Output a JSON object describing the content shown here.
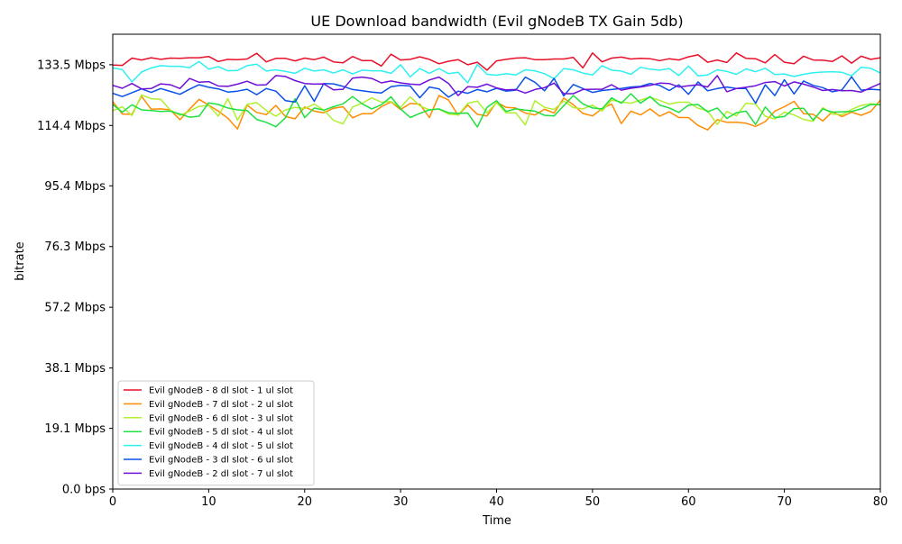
{
  "chart_data": {
    "type": "line",
    "title": "UE Download bandwidth (Evil gNodeB TX Gain 5db)",
    "xlabel": "Time",
    "ylabel": "bitrate",
    "xlim": [
      0,
      80
    ],
    "ylim": [
      0,
      143.1
    ],
    "x_ticks": [
      0,
      10,
      20,
      30,
      40,
      50,
      60,
      70,
      80
    ],
    "y_ticks": [
      {
        "value": 0.0,
        "label": "0.0 bps"
      },
      {
        "value": 19.1,
        "label": "19.1 Mbps"
      },
      {
        "value": 38.1,
        "label": "38.1 Mbps"
      },
      {
        "value": 57.2,
        "label": "57.2 Mbps"
      },
      {
        "value": 76.3,
        "label": "76.3 Mbps"
      },
      {
        "value": 95.4,
        "label": "95.4 Mbps"
      },
      {
        "value": 114.4,
        "label": "114.4 Mbps"
      },
      {
        "value": 133.5,
        "label": "133.5 Mbps"
      }
    ],
    "grid": false,
    "legend_position": "lower-left",
    "x": [
      0,
      1,
      2,
      3,
      4,
      5,
      6,
      7,
      8,
      9,
      10,
      11,
      12,
      13,
      14,
      15,
      16,
      17,
      18,
      19,
      20,
      21,
      22,
      23,
      24,
      25,
      26,
      27,
      28,
      29,
      30,
      31,
      32,
      33,
      34,
      35,
      36,
      37,
      38,
      39,
      40,
      41,
      42,
      43,
      44,
      45,
      46,
      47,
      48,
      49,
      50,
      51,
      52,
      53,
      54,
      55,
      56,
      57,
      58,
      59,
      60,
      61,
      62,
      63,
      64,
      65,
      66,
      67,
      68,
      69,
      70,
      71,
      72,
      73,
      74,
      75,
      76,
      77,
      78,
      79,
      80
    ],
    "series": [
      {
        "name": "Evil gNodeB - 8 dl slot - 1 ul slot",
        "color": "#e8102a",
        "values": [
          133.4,
          133.3,
          135.6,
          135.0,
          135.7,
          135.2,
          135.6,
          135.5,
          135.7,
          135.7,
          136.1,
          134.5,
          135.2,
          135.1,
          135.3,
          137.1,
          134.4,
          135.5,
          135.5,
          134.7,
          135.6,
          135.1,
          135.9,
          134.4,
          134.1,
          136.1,
          134.8,
          134.8,
          133.1,
          136.8,
          135.0,
          135.2,
          136.0,
          135.2,
          133.8,
          134.6,
          135.1,
          133.5,
          134.3,
          131.8,
          134.7,
          135.2,
          135.6,
          135.7,
          135.1,
          135.1,
          135.3,
          135.3,
          135.8,
          132.5,
          137.2,
          134.4,
          135.6,
          135.9,
          135.3,
          135.5,
          135.4,
          134.8,
          135.4,
          135.0,
          136.0,
          136.6,
          134.3,
          135.0,
          134.2,
          137.2,
          135.5,
          135.4,
          134.1,
          136.7,
          134.3,
          133.8,
          136.2,
          135.0,
          134.9,
          134.5,
          136.3,
          134.0,
          136.2,
          135.2,
          135.7
        ]
      },
      {
        "name": "Evil gNodeB - 7 dl slot - 2 ul slot",
        "color": "#ff8c00",
        "values": [
          121.9,
          118.0,
          117.9,
          123.6,
          119.5,
          119.6,
          119.3,
          116.2,
          119.5,
          122.6,
          120.8,
          118.9,
          116.7,
          113.3,
          120.8,
          118.5,
          117.8,
          120.7,
          117.2,
          116.5,
          120.2,
          118.9,
          118.4,
          119.8,
          120.3,
          116.8,
          118.1,
          118.1,
          120.3,
          121.8,
          119.4,
          121.3,
          121.1,
          116.9,
          123.8,
          122.4,
          117.6,
          120.8,
          117.9,
          117.4,
          121.7,
          120.1,
          119.9,
          118.3,
          117.7,
          119.5,
          118.3,
          123.0,
          120.9,
          118.2,
          117.4,
          119.7,
          121.1,
          115.0,
          118.9,
          117.7,
          119.6,
          117.3,
          118.7,
          116.9,
          116.9,
          114.4,
          113.0,
          116.2,
          115.4,
          115.4,
          115.1,
          114.1,
          115.6,
          118.9,
          120.3,
          122.0,
          118.1,
          117.9,
          115.8,
          118.7,
          117.2,
          118.6,
          117.6,
          118.8,
          122.4
        ]
      },
      {
        "name": "Evil gNodeB - 6 dl slot - 3 ul slot",
        "color": "#b0f030",
        "values": [
          119.0,
          120.3,
          117.5,
          124.0,
          122.8,
          122.6,
          119.2,
          117.6,
          118.9,
          120.4,
          120.7,
          117.3,
          122.8,
          116.1,
          121.0,
          121.6,
          119.1,
          117.3,
          119.3,
          120.1,
          119.7,
          121.1,
          119.2,
          116.0,
          114.9,
          120.2,
          121.4,
          123.1,
          121.7,
          121.9,
          120.1,
          123.4,
          120.6,
          119.3,
          119.5,
          118.0,
          117.7,
          121.3,
          122.1,
          118.3,
          121.6,
          118.4,
          118.4,
          114.6,
          122.2,
          120.1,
          119.4,
          122.1,
          120.0,
          119.6,
          120.8,
          118.9,
          122.4,
          121.8,
          121.4,
          122.4,
          123.3,
          122.3,
          121.1,
          121.7,
          121.7,
          119.8,
          119.0,
          114.7,
          118.8,
          117.4,
          121.4,
          121.1,
          117.3,
          116.4,
          118.6,
          117.7,
          116.3,
          115.7,
          120.0,
          118.0,
          117.8,
          119.4,
          120.7,
          121.2,
          120.9
        ]
      },
      {
        "name": "Evil gNodeB - 5 dl slot - 4 ul slot",
        "color": "#1fe040",
        "values": [
          121.0,
          118.6,
          120.9,
          119.3,
          119.1,
          118.8,
          118.9,
          118.0,
          117.0,
          117.3,
          121.5,
          121.0,
          119.9,
          119.3,
          119.1,
          116.3,
          115.4,
          114.0,
          116.8,
          122.8,
          116.9,
          119.9,
          119.2,
          120.3,
          121.2,
          123.5,
          121.2,
          119.6,
          120.9,
          123.4,
          119.6,
          116.9,
          118.2,
          119.3,
          119.6,
          118.4,
          118.2,
          118.3,
          113.9,
          120.1,
          122.2,
          118.8,
          119.6,
          119.2,
          118.9,
          117.6,
          117.4,
          120.6,
          123.8,
          121.2,
          119.9,
          119.6,
          123.1,
          121.4,
          124.4,
          121.4,
          123.5,
          120.8,
          119.9,
          118.5,
          120.8,
          121.0,
          118.7,
          119.9,
          116.6,
          118.4,
          118.9,
          114.7,
          120.2,
          116.9,
          117.2,
          119.7,
          119.8,
          116.1,
          119.6,
          118.6,
          118.7,
          118.8,
          119.6,
          121.0,
          120.9
        ]
      },
      {
        "name": "Evil gNodeB - 4 dl slot - 5 ul slot",
        "color": "#2ff0f0",
        "values": [
          132.5,
          132.0,
          128.1,
          131.2,
          132.5,
          133.2,
          133.0,
          133.0,
          132.6,
          134.5,
          132.1,
          132.9,
          131.6,
          131.7,
          133.2,
          133.7,
          131.5,
          131.9,
          131.4,
          130.8,
          132.4,
          131.5,
          131.9,
          130.9,
          131.9,
          130.6,
          131.8,
          131.6,
          131.6,
          130.8,
          133.5,
          129.7,
          132.3,
          130.8,
          132.3,
          130.7,
          131.1,
          127.8,
          133.6,
          130.5,
          130.2,
          130.7,
          130.3,
          131.9,
          131.6,
          130.7,
          129.1,
          132.3,
          131.9,
          130.9,
          130.3,
          133.2,
          131.8,
          131.5,
          130.5,
          132.7,
          132.1,
          131.8,
          132.3,
          130.1,
          133.1,
          130.0,
          130.3,
          131.9,
          131.4,
          130.5,
          132.2,
          131.3,
          132.4,
          130.4,
          130.6,
          129.8,
          130.5,
          131.0,
          131.2,
          131.3,
          131.1,
          130.0,
          132.7,
          132.4,
          130.9
        ]
      },
      {
        "name": "Evil gNodeB - 3 dl slot - 6 ul slot",
        "color": "#0a50e8",
        "values": [
          124.5,
          123.5,
          124.7,
          125.9,
          124.8,
          126.0,
          125.1,
          124.2,
          125.8,
          127.2,
          126.4,
          125.9,
          124.9,
          125.2,
          125.8,
          124.1,
          126.0,
          125.2,
          122.2,
          121.8,
          126.9,
          122.0,
          127.6,
          127.5,
          126.7,
          125.7,
          125.3,
          124.9,
          124.6,
          126.6,
          127.0,
          126.8,
          123.1,
          126.5,
          125.9,
          123.3,
          125.2,
          124.5,
          125.7,
          125.0,
          126.1,
          125.2,
          125.5,
          129.6,
          128.0,
          125.3,
          129.2,
          123.7,
          127.3,
          126.0,
          124.8,
          125.4,
          125.7,
          126.0,
          126.5,
          126.7,
          127.6,
          127.0,
          125.4,
          127.2,
          124.2,
          128.1,
          125.3,
          126.0,
          126.5,
          126.0,
          126.0,
          121.4,
          127.2,
          123.8,
          128.8,
          124.3,
          128.4,
          127.0,
          126.3,
          125.0,
          125.6,
          129.7,
          125.5,
          125.8,
          125.6
        ]
      },
      {
        "name": "Evil gNodeB - 2 dl slot - 7 ul slot",
        "color": "#7010d8",
        "values": [
          127.0,
          126.1,
          127.6,
          125.9,
          126.0,
          127.5,
          127.2,
          126.0,
          129.2,
          128.0,
          128.2,
          126.8,
          126.7,
          127.4,
          128.3,
          127.1,
          127.2,
          130.1,
          129.8,
          128.5,
          127.6,
          127.4,
          127.5,
          125.6,
          125.8,
          129.3,
          129.6,
          129.2,
          127.8,
          128.4,
          127.8,
          127.4,
          127.2,
          128.7,
          129.6,
          127.6,
          123.8,
          126.6,
          126.4,
          127.4,
          126.2,
          125.6,
          125.7,
          124.6,
          125.7,
          126.3,
          127.7,
          124.4,
          124.4,
          125.7,
          125.8,
          125.8,
          127.2,
          125.5,
          126.1,
          126.5,
          127.0,
          127.7,
          127.6,
          126.5,
          126.9,
          127.2,
          126.5,
          130.1,
          125.0,
          126.0,
          126.4,
          126.9,
          127.9,
          128.2,
          126.8,
          128.1,
          127.4,
          126.5,
          125.4,
          125.7,
          125.3,
          125.4,
          124.9,
          126.3,
          127.6
        ]
      }
    ]
  }
}
